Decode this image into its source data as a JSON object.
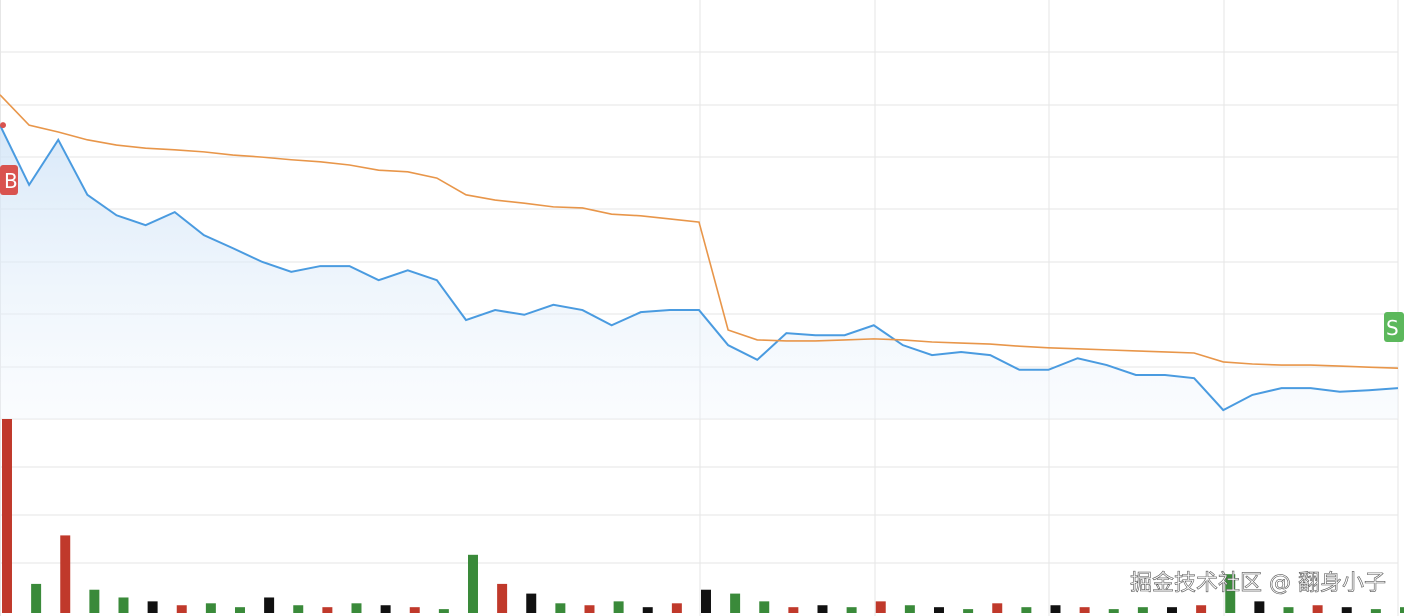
{
  "chart_data": {
    "type": "line",
    "x": [
      0,
      1,
      2,
      3,
      4,
      5,
      6,
      7,
      8,
      9,
      10,
      11,
      12,
      13,
      14,
      15,
      16,
      17,
      18,
      19,
      20,
      21,
      22,
      23,
      24,
      25,
      26,
      27,
      28,
      29,
      30,
      31,
      32,
      33,
      34,
      35,
      36,
      37,
      38,
      39,
      40,
      41,
      42,
      43,
      44,
      45,
      46,
      47,
      48
    ],
    "xlim": [
      0,
      48
    ],
    "ylim": [
      0,
      8
    ],
    "series": [
      {
        "color": "#4a9be0",
        "values": [
          5.61,
          4.47,
          5.33,
          4.28,
          3.89,
          3.7,
          3.95,
          3.51,
          3.26,
          3.0,
          2.81,
          2.92,
          2.92,
          2.65,
          2.84,
          2.65,
          1.89,
          2.08,
          1.99,
          2.18,
          2.08,
          1.79,
          2.04,
          2.08,
          2.08,
          1.41,
          1.13,
          1.64,
          1.6,
          1.6,
          1.79,
          1.41,
          1.22,
          1.28,
          1.22,
          0.94,
          0.94,
          1.16,
          1.03,
          0.84,
          0.84,
          0.78,
          0.17,
          0.46,
          0.59,
          0.59,
          0.52,
          0.55,
          0.59
        ]
      },
      {
        "color": "#e8964a",
        "values": [
          6.19,
          5.61,
          5.48,
          5.33,
          5.23,
          5.17,
          5.14,
          5.1,
          5.04,
          5.0,
          4.95,
          4.91,
          4.85,
          4.75,
          4.72,
          4.6,
          4.28,
          4.18,
          4.12,
          4.05,
          4.03,
          3.91,
          3.88,
          3.82,
          3.76,
          1.7,
          1.51,
          1.49,
          1.49,
          1.51,
          1.53,
          1.51,
          1.47,
          1.45,
          1.43,
          1.39,
          1.36,
          1.34,
          1.32,
          1.3,
          1.28,
          1.26,
          1.09,
          1.05,
          1.03,
          1.03,
          1.01,
          0.99,
          0.97
        ]
      }
    ],
    "volume": {
      "ylim": [
        0,
        100
      ],
      "values": [
        100,
        15,
        40,
        12,
        8,
        6,
        4,
        5,
        3,
        8,
        4,
        3,
        5,
        4,
        3,
        2,
        30,
        15,
        10,
        5,
        4,
        6,
        3,
        5,
        12,
        10,
        6,
        3,
        4,
        3,
        6,
        4,
        3,
        2,
        5,
        3,
        4,
        3,
        2,
        3,
        3,
        4,
        20,
        6,
        3,
        4,
        3,
        2,
        3
      ],
      "colors": [
        "#c0392b",
        "#3a8a3a",
        "#c0392b",
        "#3a8a3a",
        "#3a8a3a",
        "#111111",
        "#c0392b",
        "#3a8a3a",
        "#3a8a3a",
        "#111111",
        "#3a8a3a",
        "#c0392b",
        "#3a8a3a",
        "#111111",
        "#c0392b",
        "#3a8a3a",
        "#3a8a3a",
        "#c0392b",
        "#111111",
        "#3a8a3a",
        "#c0392b",
        "#3a8a3a",
        "#111111",
        "#c0392b",
        "#111111",
        "#3a8a3a",
        "#3a8a3a",
        "#c0392b",
        "#111111",
        "#3a8a3a",
        "#c0392b",
        "#3a8a3a",
        "#111111",
        "#3a8a3a",
        "#c0392b",
        "#3a8a3a",
        "#111111",
        "#c0392b",
        "#3a8a3a",
        "#3a8a3a",
        "#111111",
        "#c0392b",
        "#3a8a3a",
        "#111111",
        "#3a8a3a",
        "#c0392b",
        "#111111",
        "#3a8a3a",
        "#3a8a3a"
      ]
    },
    "buy_label": "B",
    "sell_label": "S",
    "watermark": "掘金技术社区 @ 翻身小子"
  }
}
